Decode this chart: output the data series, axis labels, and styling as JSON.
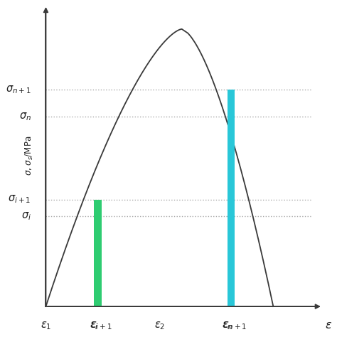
{
  "background_color": "#ffffff",
  "sigma_i": 0.3,
  "sigma_i1": 0.355,
  "sigma_n": 0.63,
  "sigma_n1": 0.72,
  "eps_i": 0.195,
  "eps_i1": 0.225,
  "eps_2": 0.46,
  "eps_n": 0.735,
  "eps_n1": 0.765,
  "bar_green_color": "#2ecc71",
  "bar_cyan_color": "#29c7d8",
  "curve_color": "#3a3a3a",
  "dotted_color": "#aaaaaa",
  "text_color": "#222222",
  "ylim": [
    -0.06,
    1.0
  ],
  "xlim": [
    -0.08,
    1.12
  ]
}
